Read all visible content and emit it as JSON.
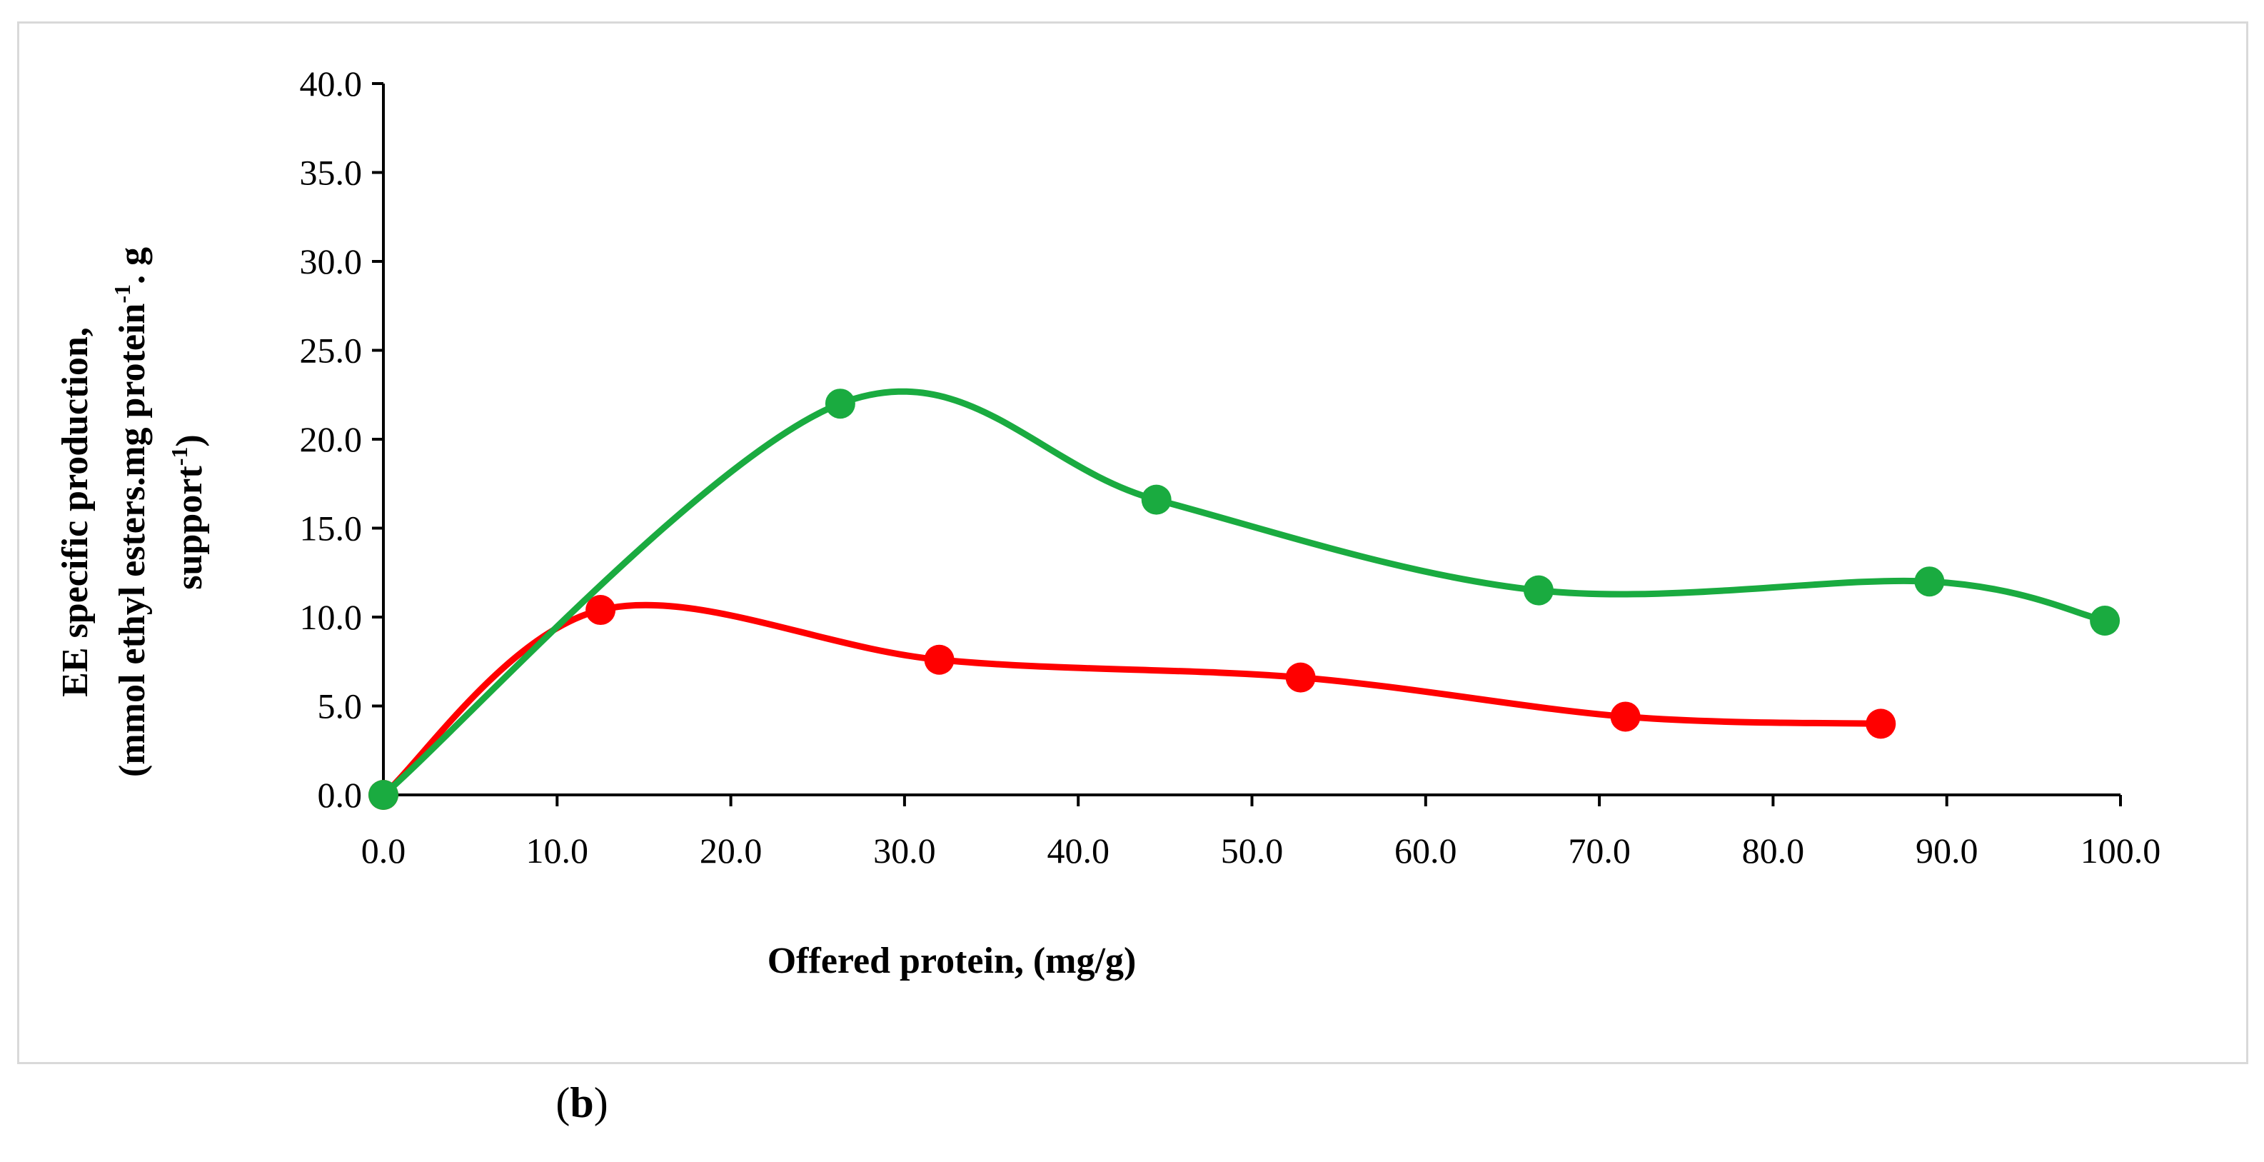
{
  "chart_data": {
    "type": "line",
    "smooth": true,
    "ylabel_lines": [
      "EE specific production,",
      "(mmol ethyl esters.mg protein",
      "-1",
      ". g support",
      "-1",
      ")"
    ],
    "ylabel_line1": "EE specific production,",
    "ylabel_line2_a": "(mmol ethyl esters.mg protein",
    "ylabel_line2_sup1": "-1",
    "ylabel_line2_b": ". g",
    "ylabel_line3_a": "support",
    "ylabel_line3_sup": "-1",
    "ylabel_line3_b": ")",
    "xlabel": "Offered protein, (mg/g)",
    "xlim": [
      0,
      100
    ],
    "ylim": [
      0,
      40
    ],
    "x_ticks": [
      "0.0",
      "10.0",
      "20.0",
      "30.0",
      "40.0",
      "50.0",
      "60.0",
      "70.0",
      "80.0",
      "90.0",
      "100.0"
    ],
    "y_ticks": [
      "0.0",
      "5.0",
      "10.0",
      "15.0",
      "20.0",
      "25.0",
      "30.0",
      "35.0",
      "40.0"
    ],
    "grid": false,
    "series": [
      {
        "name": "green series",
        "color": "#1aab40",
        "x": [
          0.0,
          26.3,
          44.5,
          66.5,
          89.0,
          99.1
        ],
        "y": [
          0.0,
          22.0,
          16.6,
          11.5,
          12.0,
          9.8
        ]
      },
      {
        "name": "red series",
        "color": "#ff0000",
        "x": [
          0.0,
          12.5,
          32.0,
          52.8,
          71.5,
          86.2
        ],
        "y": [
          0.0,
          10.4,
          7.6,
          6.6,
          4.4,
          4.0
        ]
      }
    ]
  },
  "caption": {
    "open": "(",
    "letter": "b",
    "close": ")"
  }
}
